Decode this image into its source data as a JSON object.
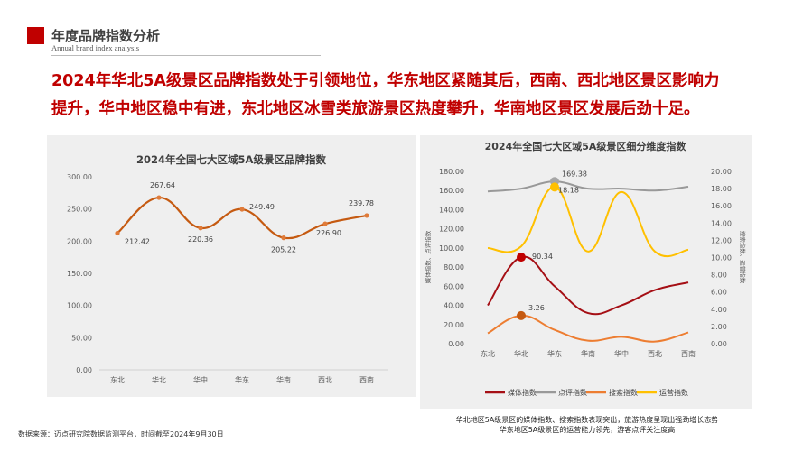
{
  "header": {
    "title": "年度品牌指数分析",
    "subtitle": "Annual brand index analysis"
  },
  "headline": [
    "2024年华北5A级景区品牌指数处于引领地位，华东地区紧随其后，西南、西北地区景区影响力",
    "提升，华中地区稳中有进，东北地区冰雪类旅游景区热度攀升，华南地区景区发展后劲十足。"
  ],
  "colors": {
    "accent": "#c00000",
    "brand_line": "#c55a11",
    "media": "#a50f15",
    "review": "#999999",
    "search": "#ed7d31",
    "operation": "#ffc000",
    "panel": "#efefef"
  },
  "chart_data": [
    {
      "type": "line",
      "title": "2024年全国七大区域5A级景区品牌指数",
      "categories": [
        "东北",
        "华北",
        "华中",
        "华东",
        "华南",
        "西北",
        "西南"
      ],
      "values": [
        212.42,
        267.64,
        220.36,
        249.49,
        205.22,
        226.9,
        239.78
      ],
      "data_labels": [
        "212.42",
        "267.64",
        "220.36",
        "249.49",
        "205.22",
        "226.90",
        "239.78"
      ],
      "ylim": [
        0,
        300
      ],
      "yticks": [
        "0.00",
        "50.00",
        "100.00",
        "150.00",
        "200.00",
        "250.00",
        "300.00"
      ],
      "smooth": true,
      "grid": false
    },
    {
      "type": "line",
      "title": "2024年全国七大区域5A级景区细分维度指数",
      "categories": [
        "东北",
        "华北",
        "华东",
        "华南",
        "华中",
        "西北",
        "西南"
      ],
      "ylabel": "媒体指数、点评指数",
      "y2label": "搜索指数、运营指数",
      "ylim": [
        0,
        180
      ],
      "y2lim": [
        0,
        20
      ],
      "yticks": [
        "0.00",
        "20.00",
        "40.00",
        "60.00",
        "80.00",
        "100.00",
        "120.00",
        "140.00",
        "160.00",
        "180.00"
      ],
      "y2ticks": [
        "0.00",
        "2.00",
        "4.00",
        "6.00",
        "8.00",
        "10.00",
        "12.00",
        "14.00",
        "16.00",
        "18.00",
        "20.00"
      ],
      "legend": "bottom",
      "smooth": true,
      "series": [
        {
          "name": "媒体指数",
          "axis": "left",
          "values": [
            40,
            90.34,
            60,
            32,
            40,
            56,
            64
          ],
          "highlight": {
            "index": 1,
            "label": "90.34"
          }
        },
        {
          "name": "点评指数",
          "axis": "left",
          "values": [
            159,
            162,
            169.38,
            162,
            162,
            160,
            164
          ],
          "highlight": {
            "index": 2,
            "label": "169.38"
          }
        },
        {
          "name": "搜索指数",
          "axis": "right",
          "values": [
            1.2,
            3.26,
            1.6,
            0.35,
            0.8,
            0.25,
            1.3
          ],
          "highlight": {
            "index": 1,
            "label": "3.26"
          }
        },
        {
          "name": "运营指数",
          "axis": "right",
          "values": [
            11.1,
            11.3,
            18.18,
            10.7,
            17.6,
            10.7,
            10.9
          ],
          "highlight": {
            "index": 2,
            "label": "18.18"
          }
        }
      ]
    }
  ],
  "notes": [
    "华北地区5A级景区的媒体指数、搜索指数表现突出，旅游热度呈现出强劲增长态势",
    "华东地区5A级景区的运营能力领先，游客点评关注度高"
  ],
  "source": "数据来源：迈点研究院数据监测平台，时间截至2024年9月30日"
}
